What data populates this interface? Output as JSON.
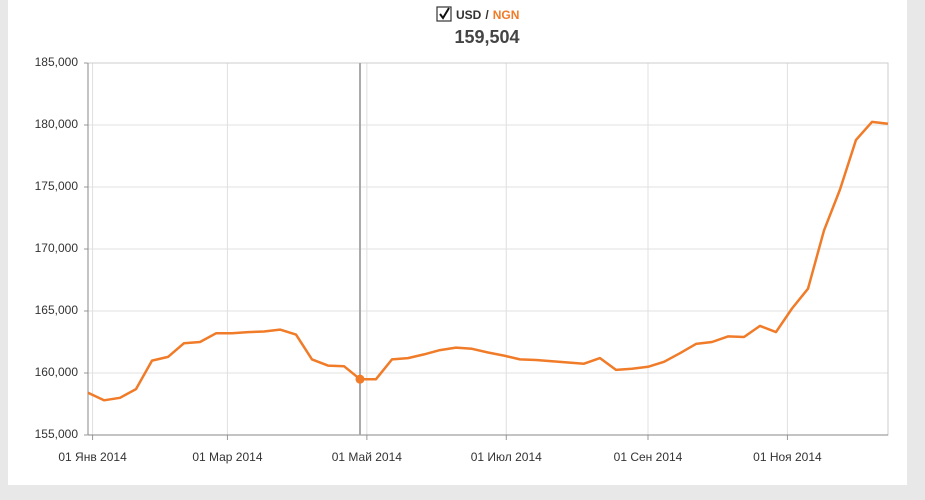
{
  "chart_data": {
    "type": "line",
    "legend": {
      "base": "USD",
      "separator": "/",
      "quote": "NGN"
    },
    "readout": {
      "x": "2014-04-28",
      "value": 159504,
      "label": "159,504"
    },
    "x": [
      "2013-12-30",
      "2014-01-06",
      "2014-01-13",
      "2014-01-20",
      "2014-01-27",
      "2014-02-03",
      "2014-02-10",
      "2014-02-17",
      "2014-02-24",
      "2014-03-03",
      "2014-03-10",
      "2014-03-17",
      "2014-03-24",
      "2014-03-31",
      "2014-04-07",
      "2014-04-14",
      "2014-04-21",
      "2014-04-28",
      "2014-05-05",
      "2014-05-12",
      "2014-05-19",
      "2014-05-26",
      "2014-06-02",
      "2014-06-09",
      "2014-06-16",
      "2014-06-23",
      "2014-06-30",
      "2014-07-07",
      "2014-07-14",
      "2014-07-21",
      "2014-07-28",
      "2014-08-04",
      "2014-08-11",
      "2014-08-18",
      "2014-08-25",
      "2014-09-01",
      "2014-09-08",
      "2014-09-15",
      "2014-09-22",
      "2014-09-29",
      "2014-10-06",
      "2014-10-13",
      "2014-10-20",
      "2014-10-27",
      "2014-11-03",
      "2014-11-10",
      "2014-11-17",
      "2014-11-24",
      "2014-12-01",
      "2014-12-08",
      "2014-12-15"
    ],
    "series": [
      {
        "color": "#f07b28",
        "values": [
          158400,
          157800,
          158000,
          158700,
          161000,
          161300,
          162400,
          162500,
          163200,
          163200,
          163300,
          163350,
          163500,
          163100,
          161100,
          160600,
          160550,
          159504,
          159500,
          161100,
          161200,
          161500,
          161850,
          162050,
          161950,
          161650,
          161400,
          161100,
          161050,
          160950,
          160850,
          160750,
          161200,
          160250,
          160350,
          160500,
          160900,
          161600,
          162350,
          162500,
          162950,
          162900,
          163800,
          163300,
          165200,
          166800,
          171500,
          174800,
          178800,
          180250,
          180100
        ]
      }
    ],
    "xlim": [
      "2013-12-30",
      "2014-12-15"
    ],
    "xticks": [
      {
        "value": "2014-01-01",
        "label": "01 Янв 2014"
      },
      {
        "value": "2014-03-01",
        "label": "01 Мар 2014"
      },
      {
        "value": "2014-05-01",
        "label": "01 Май 2014"
      },
      {
        "value": "2014-07-01",
        "label": "01 Июл 2014"
      },
      {
        "value": "2014-09-01",
        "label": "01 Сен 2014"
      },
      {
        "value": "2014-11-01",
        "label": "01 Ноя 2014"
      }
    ],
    "ylim": [
      155000,
      185000
    ],
    "yticks": [
      {
        "value": 155000,
        "label": "155,000"
      },
      {
        "value": 160000,
        "label": "160,000"
      },
      {
        "value": 165000,
        "label": "165,000"
      },
      {
        "value": 170000,
        "label": "170,000"
      },
      {
        "value": 175000,
        "label": "175,000"
      },
      {
        "value": 180000,
        "label": "180,000"
      },
      {
        "value": 185000,
        "label": "185,000"
      }
    ],
    "grid": true
  }
}
